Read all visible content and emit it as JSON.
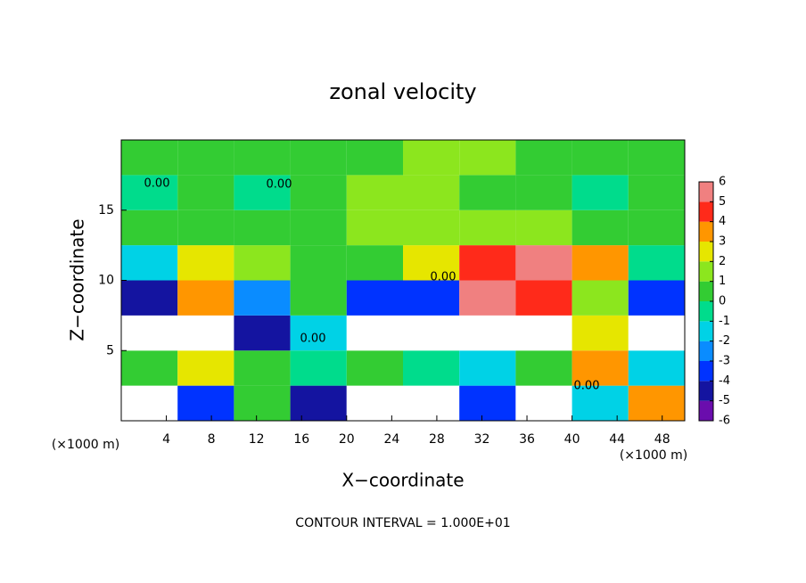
{
  "chart_data": {
    "type": "heatmap",
    "title": "zonal velocity",
    "x_label": "X−coordinate",
    "y_label": "Z−coordinate",
    "x_unit": "(×1000 m)",
    "y_unit": "(×1000 m)",
    "footer": "CONTOUR INTERVAL = 1.000E+01",
    "annotations": [
      "0.00",
      "0.00",
      "0.00",
      "0.00",
      "0.00"
    ],
    "xlim": [
      0,
      50
    ],
    "ylim": [
      0,
      20
    ],
    "xticks": [
      4,
      8,
      12,
      16,
      20,
      24,
      28,
      32,
      36,
      40,
      44,
      48
    ],
    "yticks": [
      5,
      10,
      15
    ],
    "x": [
      2.5,
      7.5,
      12.5,
      17.5,
      22.5,
      27.5,
      32.5,
      37.5,
      42.5,
      47.5
    ],
    "z": [
      1.25,
      3.75,
      6.25,
      8.75,
      11.25,
      13.75,
      16.25,
      18.75
    ],
    "values": [
      [
        -8,
        -4,
        0,
        -5,
        -8,
        -7,
        -4,
        -8,
        -2,
        3
      ],
      [
        0,
        2,
        0,
        -1,
        0,
        -1,
        -2,
        0,
        3,
        -2
      ],
      [
        -8,
        -7,
        -5,
        -2,
        -8,
        -7,
        -7,
        -8,
        2,
        -7
      ],
      [
        -5,
        3,
        -3,
        0,
        -4,
        -4,
        5,
        4,
        1,
        -4
      ],
      [
        -2,
        2.5,
        1,
        0.5,
        0.5,
        2,
        4,
        5,
        3,
        -0.5
      ],
      [
        0,
        0.5,
        0,
        0.5,
        1,
        1.5,
        1.5,
        1.5,
        0.5,
        0
      ],
      [
        -0.5,
        0,
        -0.5,
        0.5,
        1,
        1,
        0.5,
        0,
        -1,
        0
      ],
      [
        0,
        0.5,
        0.5,
        0,
        0.5,
        1,
        1,
        0.5,
        0,
        0.5
      ]
    ],
    "colorbar_ticks": [
      -6,
      -5,
      -4,
      -3,
      -2,
      -1,
      0,
      1,
      2,
      3,
      4,
      5,
      6
    ],
    "colors": [
      "#6a0dad",
      "#1414a0",
      "#0033ff",
      "#0a8cff",
      "#00d2e6",
      "#00dc8c",
      "#33cc33",
      "#8ce61e",
      "#e6e600",
      "#ff9600",
      "#ff2a1a",
      "#f08080"
    ]
  }
}
